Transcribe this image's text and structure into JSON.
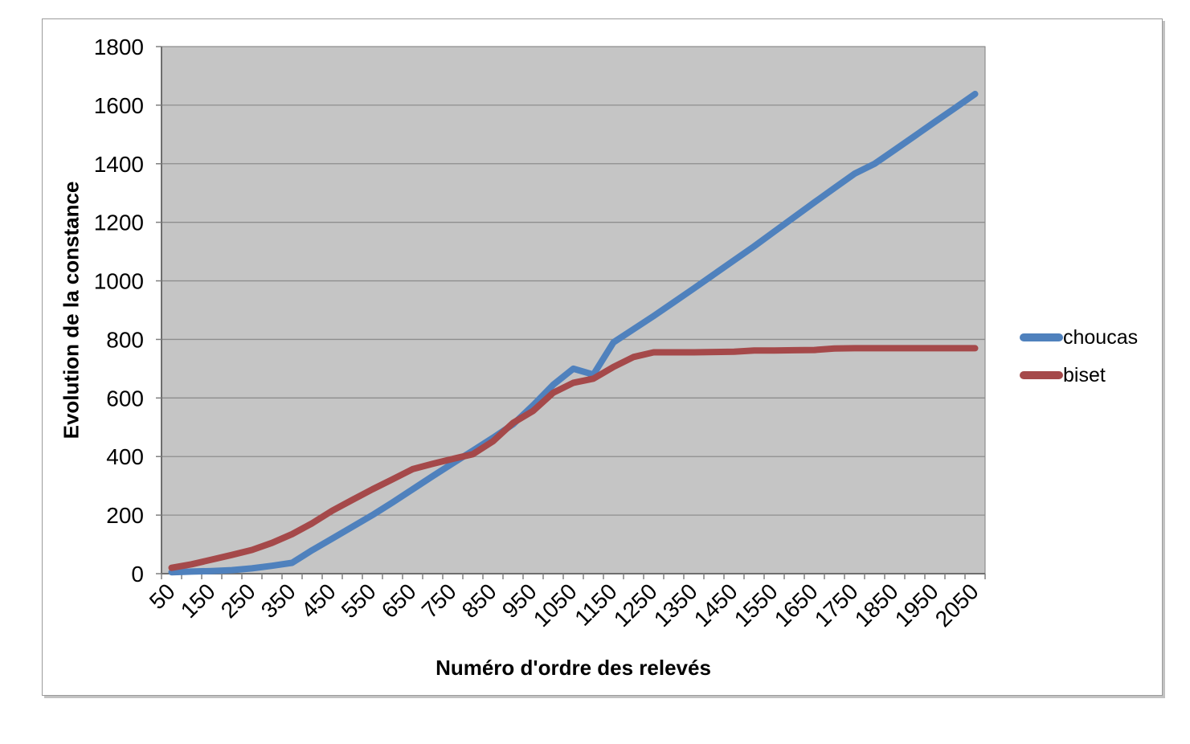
{
  "chart_data": {
    "type": "line",
    "title": "",
    "xlabel": "Numéro d'ordre des relevés",
    "ylabel": "Evolution de la constance",
    "x": [
      50,
      100,
      150,
      200,
      250,
      300,
      350,
      400,
      450,
      500,
      550,
      600,
      650,
      700,
      750,
      800,
      850,
      900,
      950,
      1000,
      1050,
      1100,
      1150,
      1200,
      1250,
      1300,
      1350,
      1400,
      1450,
      1500,
      1550,
      1600,
      1650,
      1700,
      1750,
      1800,
      1850,
      1900,
      1950,
      2000,
      2050
    ],
    "x_label_every": 100,
    "ylim": [
      0,
      1800
    ],
    "y_tick_step": 200,
    "grid": "horizontal",
    "legend_position": "right",
    "series": [
      {
        "name": "choucas",
        "color": "#4F81BD",
        "values": [
          5,
          7,
          9,
          12,
          18,
          27,
          37,
          80,
          120,
          160,
          200,
          243,
          288,
          333,
          377,
          420,
          464,
          510,
          575,
          645,
          700,
          680,
          790,
          835,
          880,
          927,
          974,
          1022,
          1070,
          1118,
          1168,
          1218,
          1268,
          1317,
          1366,
          1400,
          1447,
          1495,
          1543,
          1590,
          1638
        ]
      },
      {
        "name": "biset",
        "color": "#A5494A",
        "values": [
          20,
          32,
          48,
          64,
          81,
          105,
          135,
          172,
          215,
          252,
          288,
          322,
          357,
          375,
          392,
          408,
          452,
          515,
          556,
          618,
          652,
          666,
          706,
          740,
          756,
          756,
          756,
          757,
          758,
          762,
          762,
          763,
          764,
          769,
          770,
          770,
          770,
          770,
          770,
          770,
          770
        ]
      }
    ],
    "colors": {
      "plot_background": "#C5C5C5",
      "gridline": "#8E8E8E",
      "axis_line": "#6E6E6E",
      "tick": "#7F7F7F",
      "text": "#000000"
    }
  }
}
